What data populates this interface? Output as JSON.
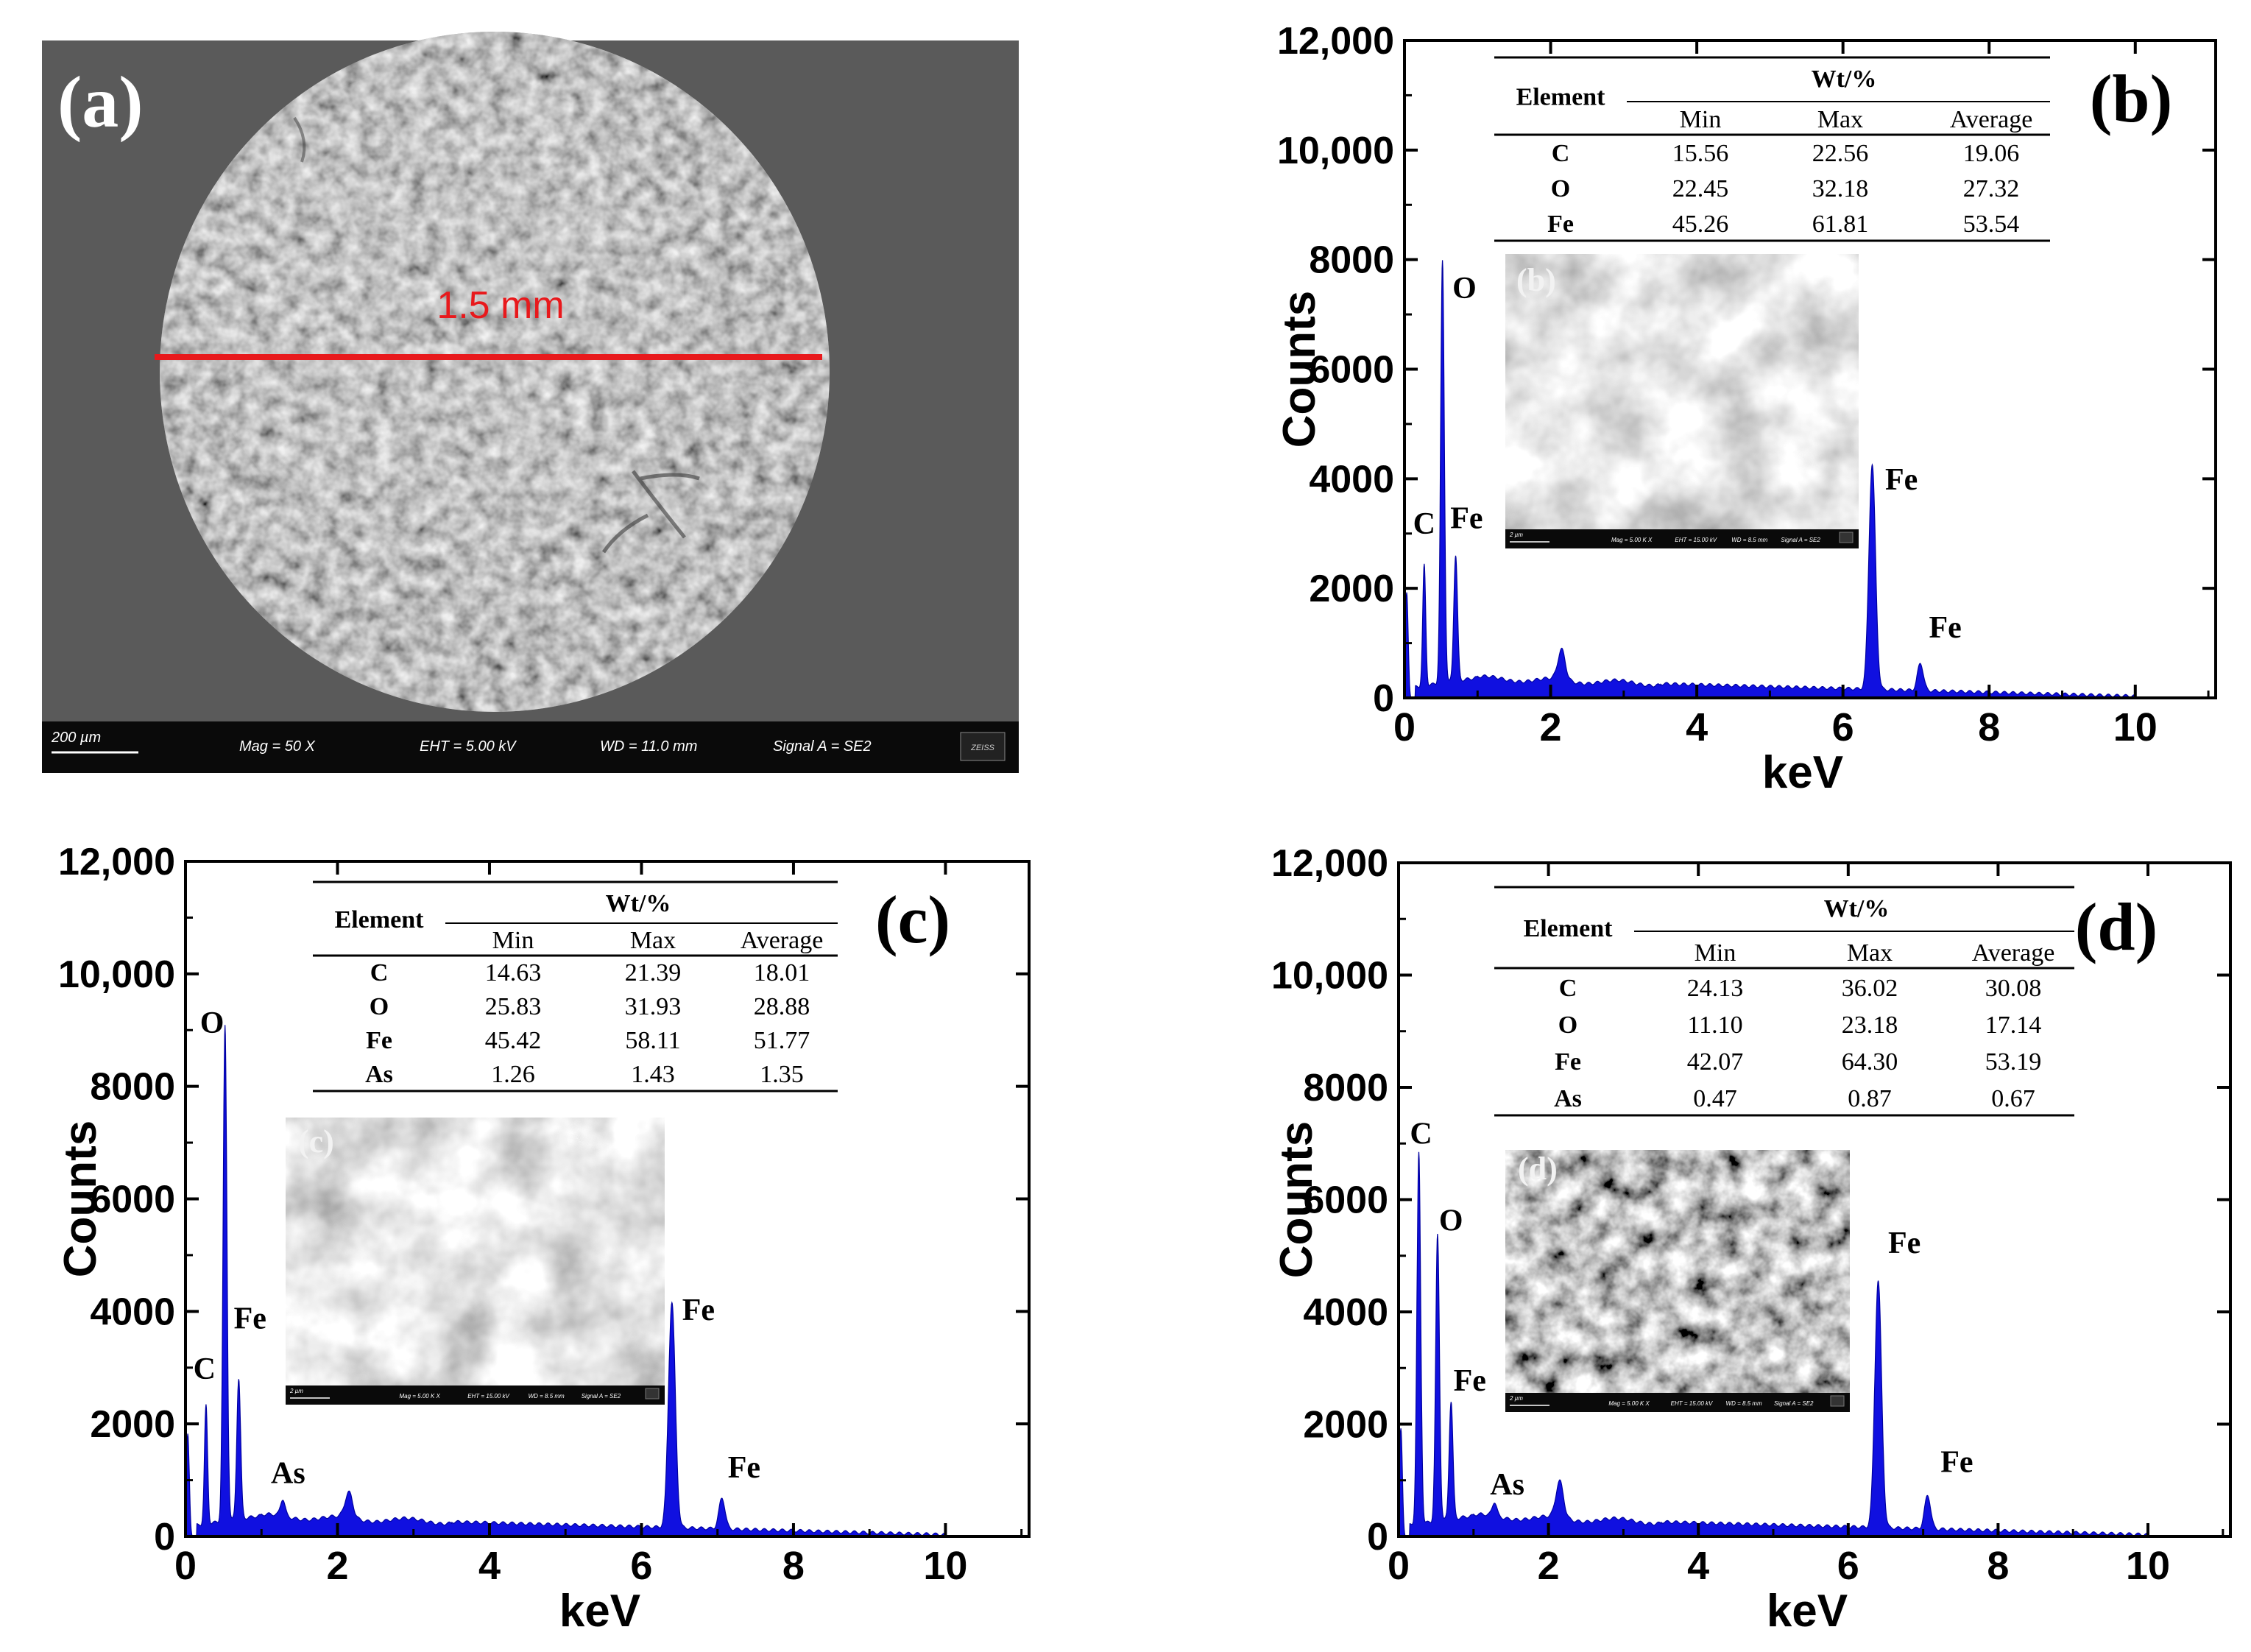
{
  "panel_a": {
    "label": "(a)",
    "measure_label": "1.5 mm",
    "scale_bar": "200 µm",
    "mag": "Mag =   50 X",
    "eht": "EHT =  5.00 kV",
    "wd": "WD = 11.0 mm",
    "signal": "Signal A = SE2",
    "logo": "ZEISS"
  },
  "inset_info": {
    "mag": "Mag =   5.00 K X",
    "eht": "EHT = 15.00 kV",
    "wd": "WD =  8.5 mm",
    "signal": "Signal A = SE2",
    "scale": "2 µm"
  },
  "colors": {
    "spectrum": "#1010e0",
    "highlight": "#e8191c",
    "axis": "#000000"
  },
  "chart_data": [
    {
      "id": "b",
      "type": "area",
      "panel_label": "(b)",
      "inset_label": "(b)",
      "xlabel": "keV",
      "ylabel": "Counts",
      "xlim": [
        0,
        11.1
      ],
      "ylim": [
        0,
        12000
      ],
      "xticks": [
        "0",
        "2",
        "4",
        "6",
        "8",
        "10"
      ],
      "yticks": [
        "0",
        "2000",
        "4000",
        "6000",
        "8000",
        "10,000",
        "12,000"
      ],
      "ytick_values": [
        0,
        2000,
        4000,
        6000,
        8000,
        10000,
        12000
      ],
      "xtick_values": [
        0,
        2,
        4,
        6,
        8,
        10
      ],
      "peaks": [
        {
          "x": 0.03,
          "y": 1900,
          "w": 0.02
        },
        {
          "x": 0.27,
          "y": 2200,
          "w": 0.02
        },
        {
          "x": 0.52,
          "y": 7700,
          "w": 0.025
        },
        {
          "x": 0.7,
          "y": 2300,
          "w": 0.025
        },
        {
          "x": 2.15,
          "y": 550,
          "w": 0.05
        },
        {
          "x": 6.4,
          "y": 4100,
          "w": 0.045
        },
        {
          "x": 7.06,
          "y": 500,
          "w": 0.04
        }
      ],
      "peak_labels": [
        {
          "text": "C",
          "x": 0.27,
          "y": 3000
        },
        {
          "text": "O",
          "x": 0.82,
          "y": 7300
        },
        {
          "text": "Fe",
          "x": 0.85,
          "y": 3100
        },
        {
          "text": "Fe",
          "x": 6.8,
          "y": 3800
        },
        {
          "text": "Fe",
          "x": 7.4,
          "y": 1100
        }
      ],
      "table": {
        "header_element": "Element",
        "header_group": "Wt/%",
        "columns": [
          "Min",
          "Max",
          "Average"
        ],
        "rows": [
          {
            "element": "C",
            "min": "15.56",
            "max": "22.56",
            "avg": "19.06"
          },
          {
            "element": "O",
            "min": "22.45",
            "max": "32.18",
            "avg": "27.32"
          },
          {
            "element": "Fe",
            "min": "45.26",
            "max": "61.81",
            "avg": "53.54"
          }
        ]
      }
    },
    {
      "id": "c",
      "type": "area",
      "panel_label": "(c)",
      "inset_label": "(c)",
      "xlabel": "keV",
      "ylabel": "Counts",
      "xlim": [
        0,
        11.1
      ],
      "ylim": [
        0,
        12000
      ],
      "xticks": [
        "0",
        "2",
        "4",
        "6",
        "8",
        "10"
      ],
      "yticks": [
        "0",
        "2000",
        "4000",
        "6000",
        "8000",
        "10,000",
        "12,000"
      ],
      "ytick_values": [
        0,
        2000,
        4000,
        6000,
        8000,
        10000,
        12000
      ],
      "xtick_values": [
        0,
        2,
        4,
        6,
        8,
        10
      ],
      "peaks": [
        {
          "x": 0.03,
          "y": 1800,
          "w": 0.02
        },
        {
          "x": 0.27,
          "y": 2100,
          "w": 0.02
        },
        {
          "x": 0.52,
          "y": 8800,
          "w": 0.025
        },
        {
          "x": 0.7,
          "y": 2500,
          "w": 0.025
        },
        {
          "x": 1.28,
          "y": 300,
          "w": 0.03
        },
        {
          "x": 2.15,
          "y": 450,
          "w": 0.05
        },
        {
          "x": 6.4,
          "y": 4000,
          "w": 0.045
        },
        {
          "x": 7.06,
          "y": 550,
          "w": 0.04
        }
      ],
      "peak_labels": [
        {
          "text": "O",
          "x": 0.35,
          "y": 8950
        },
        {
          "text": "Fe",
          "x": 0.85,
          "y": 3700
        },
        {
          "text": "C",
          "x": 0.25,
          "y": 2800
        },
        {
          "text": "As",
          "x": 1.35,
          "y": 950
        },
        {
          "text": "Fe",
          "x": 6.75,
          "y": 3850
        },
        {
          "text": "Fe",
          "x": 7.35,
          "y": 1050
        }
      ],
      "table": {
        "header_element": "Element",
        "header_group": "Wt/%",
        "columns": [
          "Min",
          "Max",
          "Average"
        ],
        "rows": [
          {
            "element": "C",
            "min": "14.63",
            "max": "21.39",
            "avg": "18.01"
          },
          {
            "element": "O",
            "min": "25.83",
            "max": "31.93",
            "avg": "28.88"
          },
          {
            "element": "Fe",
            "min": "45.42",
            "max": "58.11",
            "avg": "51.77"
          },
          {
            "element": "As",
            "min": "1.26",
            "max": "1.43",
            "avg": "1.35"
          }
        ]
      }
    },
    {
      "id": "d",
      "type": "area",
      "panel_label": "(d)",
      "inset_label": "(d)",
      "xlabel": "keV",
      "ylabel": "Counts",
      "xlim": [
        0,
        11.1
      ],
      "ylim": [
        0,
        12000
      ],
      "xticks": [
        "0",
        "2",
        "4",
        "6",
        "8",
        "10"
      ],
      "yticks": [
        "0",
        "2000",
        "4000",
        "6000",
        "8000",
        "10,000",
        "12,000"
      ],
      "ytick_values": [
        0,
        2000,
        4000,
        6000,
        8000,
        10000,
        12000
      ],
      "xtick_values": [
        0,
        2,
        4,
        6,
        8,
        10
      ],
      "peaks": [
        {
          "x": 0.03,
          "y": 1900,
          "w": 0.02
        },
        {
          "x": 0.27,
          "y": 6600,
          "w": 0.025
        },
        {
          "x": 0.52,
          "y": 5100,
          "w": 0.025
        },
        {
          "x": 0.7,
          "y": 2100,
          "w": 0.025
        },
        {
          "x": 1.28,
          "y": 250,
          "w": 0.03
        },
        {
          "x": 2.15,
          "y": 650,
          "w": 0.05
        },
        {
          "x": 6.4,
          "y": 4400,
          "w": 0.045
        },
        {
          "x": 7.06,
          "y": 600,
          "w": 0.04
        }
      ],
      "peak_labels": [
        {
          "text": "C",
          "x": 0.3,
          "y": 7000
        },
        {
          "text": "O",
          "x": 0.7,
          "y": 5450
        },
        {
          "text": "Fe",
          "x": 0.95,
          "y": 2600
        },
        {
          "text": "As",
          "x": 1.45,
          "y": 750
        },
        {
          "text": "Fe",
          "x": 6.75,
          "y": 5050
        },
        {
          "text": "Fe",
          "x": 7.45,
          "y": 1150
        }
      ],
      "table": {
        "header_element": "Element",
        "header_group": "Wt/%",
        "columns": [
          "Min",
          "Max",
          "Average"
        ],
        "rows": [
          {
            "element": "C",
            "min": "24.13",
            "max": "36.02",
            "avg": "30.08"
          },
          {
            "element": "O",
            "min": "11.10",
            "max": "23.18",
            "avg": "17.14"
          },
          {
            "element": "Fe",
            "min": "42.07",
            "max": "64.30",
            "avg": "53.19"
          },
          {
            "element": "As",
            "min": "0.47",
            "max": "0.87",
            "avg": "0.67"
          }
        ]
      }
    }
  ]
}
